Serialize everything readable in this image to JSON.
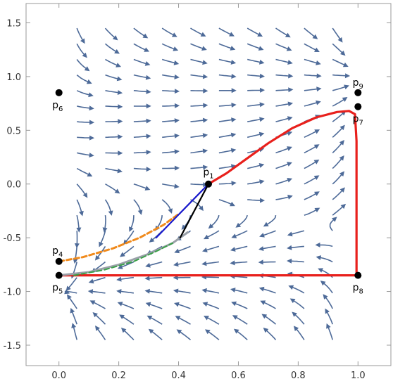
{
  "chart_data": {
    "type": "stream",
    "xlim": [
      -0.11,
      1.11
    ],
    "ylim": [
      -1.69,
      1.68
    ],
    "xticks": [
      {
        "value": 0,
        "label": "0.0"
      },
      0.2,
      0.4,
      0.6,
      0.8,
      {
        "value": 1,
        "label": "1.0"
      }
    ],
    "yticks": [
      -1.5,
      {
        "value": -1,
        "label": "-1.0"
      },
      -0.5,
      {
        "value": 0,
        "label": "0.0"
      },
      0.5,
      {
        "value": 1,
        "label": "1.0"
      },
      1.5
    ],
    "points": [
      {
        "label": "p",
        "sub": "1",
        "x": 0.5,
        "y": 0
      },
      {
        "label": "p",
        "sub": "4",
        "x": 0,
        "y": -0.72
      },
      {
        "label": "p",
        "sub": "5",
        "x": 0,
        "y": -0.85
      },
      {
        "label": "p",
        "sub": "6",
        "x": 0,
        "y": 0.85
      },
      {
        "label": "p",
        "sub": "7",
        "x": 1,
        "y": 0.72
      },
      {
        "label": "p",
        "sub": "8",
        "x": 1,
        "y": -0.85
      },
      {
        "label": "p",
        "sub": "9",
        "x": 1,
        "y": 0.85
      }
    ],
    "series": [
      {
        "color": "#e8201c",
        "width": 3.2,
        "dash": false,
        "x": [
          0.5,
          0.56,
          0.62,
          0.7,
          0.78,
          0.86,
          0.93,
          0.97,
          0.99,
          0.995,
          0.995,
          0.9,
          0
        ],
        "y": [
          0,
          0.1,
          0.22,
          0.38,
          0.52,
          0.62,
          0.67,
          0.68,
          0.65,
          0.4,
          -0.85,
          -0.85,
          -0.85
        ]
      },
      {
        "color": "#9aa0a8",
        "width": 3,
        "dash": false,
        "x": [
          0,
          0.1,
          0.2,
          0.3,
          0.38,
          0.43
        ],
        "y": [
          -0.85,
          -0.82,
          -0.75,
          -0.65,
          -0.55,
          -0.45
        ]
      },
      {
        "color": "#3aa048",
        "width": 2,
        "dash": true,
        "x": [
          0.05,
          0.15,
          0.25,
          0.33,
          0.38
        ],
        "y": [
          -0.85,
          -0.8,
          -0.72,
          -0.62,
          -0.55
        ]
      },
      {
        "color": "#f08a1c",
        "width": 3,
        "dash": true,
        "x": [
          0,
          0.08,
          0.18,
          0.27,
          0.35,
          0.4
        ],
        "y": [
          -0.72,
          -0.68,
          -0.6,
          -0.5,
          -0.38,
          -0.28
        ]
      },
      {
        "color": "#1a1acc",
        "width": 2.2,
        "dash": false,
        "x": [
          0.325,
          0.5
        ],
        "y": [
          -0.5,
          0
        ]
      },
      {
        "color": "#000000",
        "width": 2.2,
        "dash": false,
        "x": [
          0.405,
          0.5
        ],
        "y": [
          -0.5,
          0
        ]
      }
    ]
  }
}
